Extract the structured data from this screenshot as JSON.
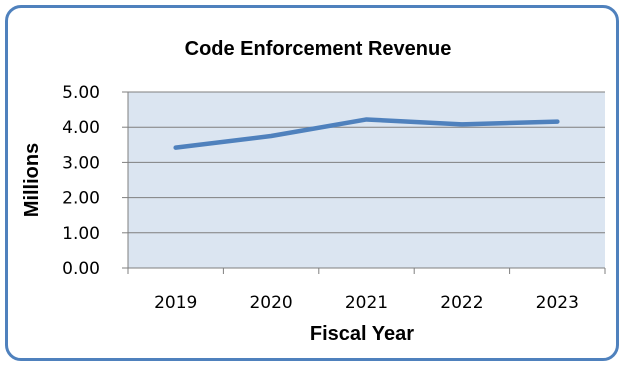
{
  "chart_data": {
    "type": "line",
    "title": "Code Enforcement Revenue",
    "xlabel": "Fiscal Year",
    "ylabel": "Millions",
    "categories": [
      "2019",
      "2020",
      "2021",
      "2022",
      "2023"
    ],
    "series": [
      {
        "values": [
          3.42,
          3.75,
          4.22,
          4.08,
          4.16
        ]
      }
    ],
    "ylim": [
      0,
      5
    ],
    "yticks": [
      "0.00",
      "1.00",
      "2.00",
      "3.00",
      "4.00",
      "5.00"
    ],
    "grid": true,
    "legend": "none"
  },
  "colors": {
    "plot_background": "#dbe5f1",
    "series_line": "#4f81bd",
    "gridline": "#7f7f7f",
    "frame": "#4f81bd"
  }
}
